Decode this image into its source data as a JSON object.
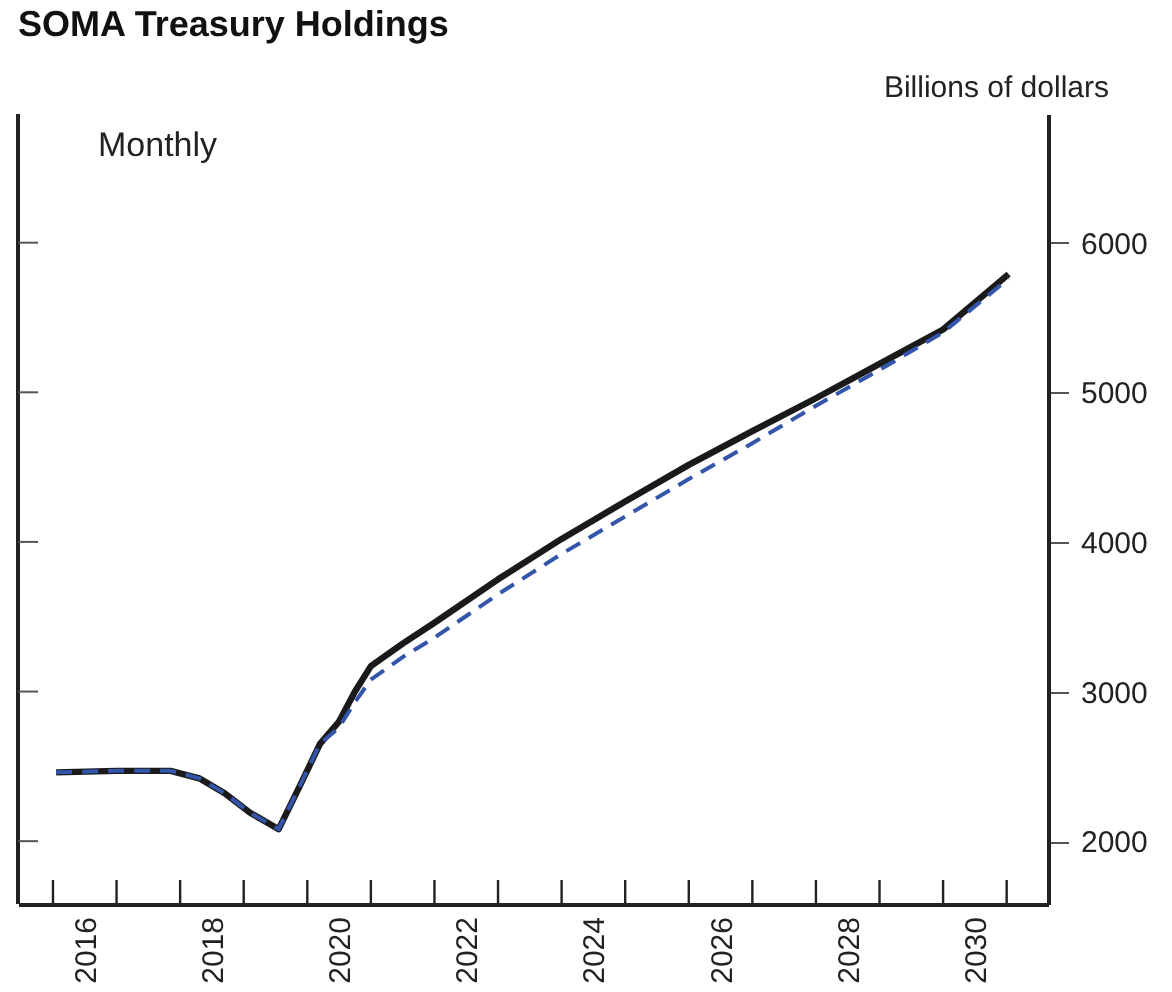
{
  "chart_data": {
    "type": "line",
    "title": "SOMA Treasury Holdings",
    "ylabel": "Billions of dollars",
    "annotations": [
      "Monthly"
    ],
    "xlim": [
      2015.45,
      2031.65
    ],
    "xticks": [
      {
        "value": 2016,
        "label": null
      },
      {
        "value": 2016.5,
        "label": "2016"
      },
      {
        "value": 2017,
        "label": null
      },
      {
        "value": 2018,
        "label": null
      },
      {
        "value": 2018.5,
        "label": "2018"
      },
      {
        "value": 2019,
        "label": null
      },
      {
        "value": 2020,
        "label": null
      },
      {
        "value": 2020.5,
        "label": "2020"
      },
      {
        "value": 2021,
        "label": null
      },
      {
        "value": 2022,
        "label": null
      },
      {
        "value": 2022.5,
        "label": "2022"
      },
      {
        "value": 2023,
        "label": null
      },
      {
        "value": 2024,
        "label": null
      },
      {
        "value": 2024.5,
        "label": "2024"
      },
      {
        "value": 2025,
        "label": null
      },
      {
        "value": 2026,
        "label": null
      },
      {
        "value": 2026.5,
        "label": "2026"
      },
      {
        "value": 2027,
        "label": null
      },
      {
        "value": 2028,
        "label": null
      },
      {
        "value": 2028.5,
        "label": "2028"
      },
      {
        "value": 2029,
        "label": null
      },
      {
        "value": 2030,
        "label": null
      },
      {
        "value": 2030.5,
        "label": "2030"
      },
      {
        "value": 2031,
        "label": null
      }
    ],
    "ylim": [
      1580,
      6860
    ],
    "yticks": [
      2000,
      3000,
      4000,
      5000,
      6000
    ],
    "x": [
      2016.05,
      2017.0,
      2017.85,
      2018.3,
      2018.7,
      2019.1,
      2019.47,
      2019.55,
      2019.9,
      2020.2,
      2020.5,
      2020.75,
      2021,
      2021.5,
      2022,
      2023,
      2024,
      2025,
      2026,
      2027,
      2028,
      2029,
      2030,
      2031.03
    ],
    "series": [
      {
        "color": "#1a1a1a",
        "line_style": "solid",
        "values": [
          2460,
          2470,
          2470,
          2420,
          2320,
          2190,
          2100,
          2080,
          2385,
          2650,
          2800,
          3000,
          3170,
          3320,
          3460,
          3750,
          4020,
          4270,
          4515,
          4740,
          4960,
          5190,
          5420,
          5790
        ]
      },
      {
        "color": "#3355aa",
        "line_style": "dashed",
        "values": [
          2460,
          2470,
          2470,
          2420,
          2320,
          2190,
          2100,
          2080,
          2385,
          2650,
          2760,
          2930,
          3080,
          3230,
          3360,
          3650,
          3920,
          4170,
          4420,
          4660,
          4910,
          5150,
          5400,
          5760
        ]
      }
    ]
  }
}
